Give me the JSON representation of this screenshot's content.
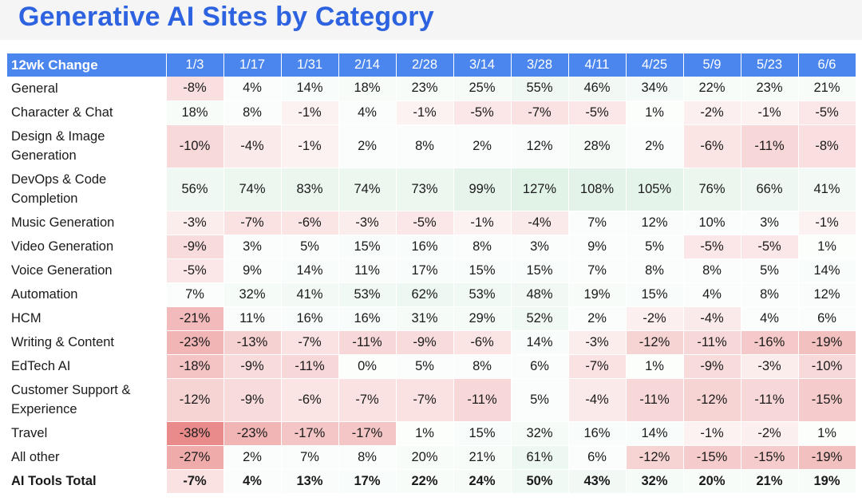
{
  "title": "Generative AI Sites by Category",
  "chart_data": {
    "type": "table",
    "header_label": "12wk Change",
    "columns": [
      "1/3",
      "1/17",
      "1/31",
      "2/14",
      "2/28",
      "3/14",
      "3/28",
      "4/11",
      "4/25",
      "5/9",
      "5/23",
      "6/6"
    ],
    "rows": [
      {
        "label": "General",
        "values": [
          -8,
          4,
          14,
          18,
          23,
          25,
          55,
          46,
          34,
          22,
          23,
          21
        ]
      },
      {
        "label": "Character & Chat",
        "values": [
          18,
          8,
          -1,
          4,
          -1,
          -5,
          -7,
          -5,
          1,
          -2,
          -1,
          -5
        ]
      },
      {
        "label": "Design & Image Generation",
        "values": [
          -10,
          -4,
          -1,
          2,
          8,
          2,
          12,
          28,
          2,
          -6,
          -11,
          -8
        ]
      },
      {
        "label": "DevOps & Code Completion",
        "values": [
          56,
          74,
          83,
          74,
          73,
          99,
          127,
          108,
          105,
          76,
          66,
          41
        ]
      },
      {
        "label": "Music Generation",
        "values": [
          -3,
          -7,
          -6,
          -3,
          -5,
          -1,
          -4,
          7,
          12,
          10,
          3,
          -1
        ]
      },
      {
        "label": "Video Generation",
        "values": [
          -9,
          3,
          5,
          15,
          16,
          8,
          3,
          9,
          5,
          -5,
          -5,
          1
        ]
      },
      {
        "label": "Voice Generation",
        "values": [
          -5,
          9,
          14,
          11,
          17,
          15,
          15,
          7,
          8,
          8,
          5,
          14
        ]
      },
      {
        "label": "Automation",
        "values": [
          7,
          32,
          41,
          53,
          62,
          53,
          48,
          19,
          15,
          4,
          8,
          12
        ]
      },
      {
        "label": "HCM",
        "values": [
          -21,
          11,
          16,
          16,
          31,
          29,
          52,
          2,
          -2,
          -4,
          4,
          6
        ]
      },
      {
        "label": "Writing & Content",
        "values": [
          -23,
          -13,
          -7,
          -11,
          -9,
          -6,
          14,
          -3,
          -12,
          -11,
          -16,
          -19
        ]
      },
      {
        "label": "EdTech AI",
        "values": [
          -18,
          -9,
          -11,
          0,
          5,
          8,
          6,
          -7,
          1,
          -9,
          -3,
          -10
        ]
      },
      {
        "label": "Customer Support & Experience",
        "values": [
          -12,
          -9,
          -6,
          -7,
          -7,
          -11,
          5,
          -4,
          -11,
          -12,
          -11,
          -15
        ]
      },
      {
        "label": "Travel",
        "values": [
          -38,
          -23,
          -17,
          -17,
          1,
          15,
          32,
          16,
          14,
          -1,
          -2,
          1
        ]
      },
      {
        "label": "All other",
        "values": [
          -27,
          2,
          7,
          8,
          20,
          21,
          61,
          6,
          -12,
          -15,
          -15,
          -19
        ]
      },
      {
        "label": "AI Tools Total",
        "values": [
          -7,
          4,
          13,
          17,
          22,
          24,
          50,
          43,
          32,
          20,
          21,
          19
        ],
        "bold": true
      }
    ]
  },
  "colors": {
    "title": "#2d62e0",
    "header_bg": "#4b86ee",
    "negative": "#e05a5a",
    "positive": "#56b57a"
  }
}
